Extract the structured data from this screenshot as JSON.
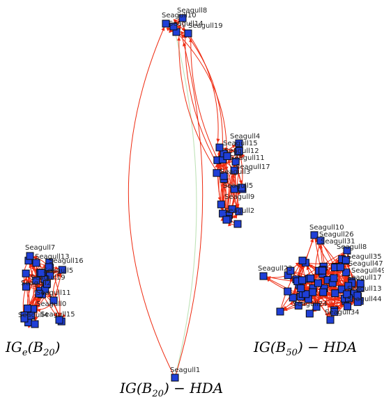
{
  "graphs": [
    {
      "id": "ige-b20",
      "caption": {
        "main": "IG",
        "sub1": "e",
        "paren_open": "(B",
        "sub2": "20",
        "paren_close": ")",
        "tail": ""
      },
      "labels": [
        "Seagull7",
        "Seagull13",
        "Seagull16",
        "Seagull5",
        "Seagull19",
        "Seagull2",
        "Seagull11",
        "Seagull0",
        "Seagull15",
        "Seagull4"
      ]
    },
    {
      "id": "ig-b20-hda",
      "caption": {
        "main": "IG(B",
        "sub2": "20",
        "tail": ") − HDA"
      },
      "labels": [
        "Seagull8",
        "Seagull10",
        "Seagull14",
        "Seagull19",
        "Seagull4",
        "Seagull15",
        "Seagull12",
        "Seagull11",
        "Seagull17",
        "Seagull3",
        "Seagull5",
        "Seagull9",
        "Seagull2",
        "Seagull1"
      ]
    },
    {
      "id": "ig-b50-hda",
      "caption": {
        "main": "IG(B",
        "sub2": "50",
        "tail": ") − HDA"
      },
      "labels": [
        "Seagull10",
        "Seagull26",
        "Seagull31",
        "Seagull8",
        "Seagull35",
        "Seagull47",
        "Seagull49",
        "Seagull23",
        "Seagull17",
        "Seagull13",
        "Seagull44",
        "Seagull34",
        "Seagull24"
      ]
    }
  ],
  "colors": {
    "node_fill": "#1f3fd6",
    "edge": "#ee2a10",
    "edge_faint": "#bfe3b8",
    "node_stroke": "#0a0a0a"
  }
}
